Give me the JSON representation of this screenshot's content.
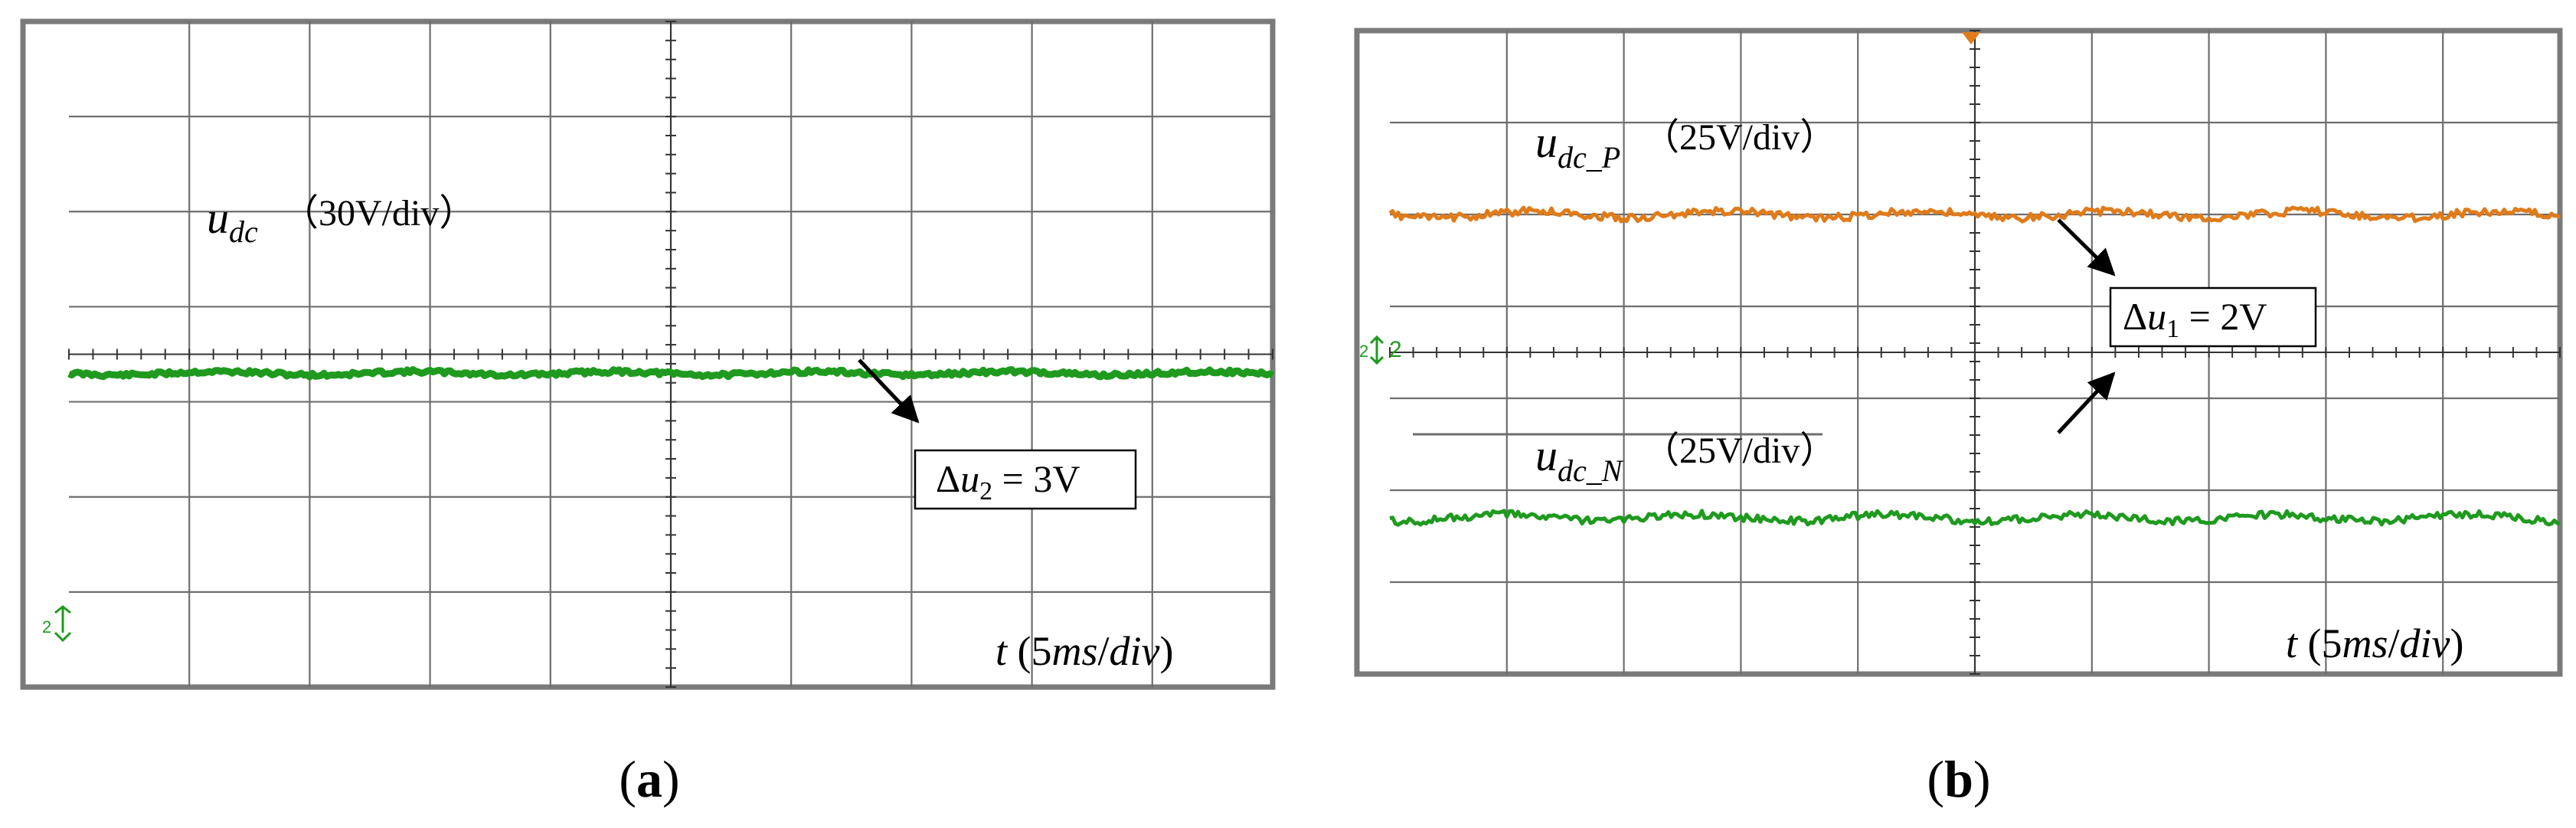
{
  "chart_data": [
    {
      "type": "line",
      "panel_caption": {
        "open": "(",
        "letter": "a",
        "close": ")"
      },
      "grid_divisions": {
        "x": 10,
        "y": 7
      },
      "trace_label": {
        "var": "u",
        "sub": "dc",
        "scale": "（30V/div）"
      },
      "annotation": {
        "delta": "Δ",
        "var": "u",
        "sub": "2",
        "rest": " = 3V"
      },
      "time_axis": {
        "var": "t",
        "open": " (5",
        "unit1": "ms",
        "slash": "/",
        "unit2": "div",
        "close": ")"
      },
      "channel_marker": "2",
      "series": [
        {
          "name": "udc",
          "color": "#1f9a1f",
          "level_div": 3.3,
          "ripple_div": 0.03,
          "x_div": [
            0,
            10
          ]
        }
      ]
    },
    {
      "type": "line",
      "panel_caption": {
        "open": "(",
        "letter": "b",
        "close": ")"
      },
      "grid_divisions": {
        "x": 10,
        "y": 7
      },
      "trace_labels": [
        {
          "var": "u",
          "sub": "dc_P",
          "scale": "（25V/div）"
        },
        {
          "var": "u",
          "sub": "dc_N",
          "scale": "（25V/div）"
        }
      ],
      "annotation": {
        "delta": "Δ",
        "var": "u",
        "sub": "1",
        "rest": " = 2V"
      },
      "time_axis": {
        "var": "t",
        "open": " (5",
        "unit1": "ms",
        "slash": "/",
        "unit2": "div",
        "close": ")"
      },
      "channel_marker": "2",
      "series": [
        {
          "name": "udc_P",
          "color": "#e07b1a",
          "level_div": 5.0,
          "ripple_div": 0.06,
          "x_div": [
            0,
            10
          ]
        },
        {
          "name": "udc_N",
          "color": "#1f9a1f",
          "level_div": 1.7,
          "ripple_div": 0.06,
          "x_div": [
            0,
            10
          ]
        }
      ]
    }
  ],
  "colors": {
    "frame": "#7a7a7a",
    "grid": "#6e6e6e",
    "bg": "#ffffff",
    "center_tick": "#333333"
  }
}
